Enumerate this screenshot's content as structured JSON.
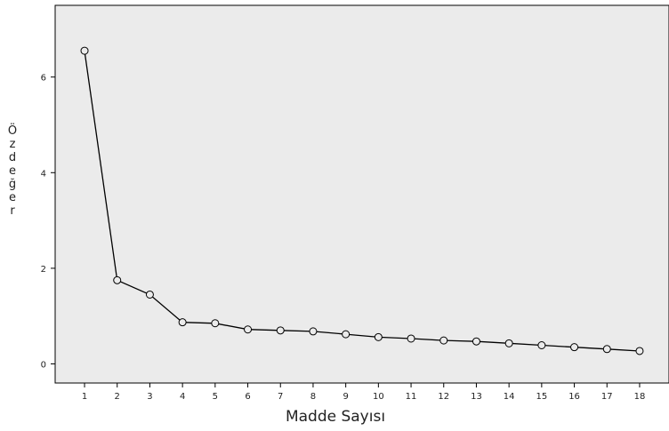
{
  "chart_data": {
    "type": "line",
    "title": "",
    "xlabel": "Madde Sayısı",
    "ylabel": "Özdeğer",
    "x": [
      1,
      2,
      3,
      4,
      5,
      6,
      7,
      8,
      9,
      10,
      11,
      12,
      13,
      14,
      15,
      16,
      17,
      18
    ],
    "x_ticks": [
      "1",
      "2",
      "3",
      "4",
      "5",
      "6",
      "7",
      "8",
      "9",
      "10",
      "11",
      "12",
      "13",
      "14",
      "15",
      "16",
      "17",
      "18"
    ],
    "series": [
      {
        "values": [
          6.55,
          1.75,
          1.45,
          0.87,
          0.85,
          0.72,
          0.7,
          0.68,
          0.62,
          0.56,
          0.53,
          0.49,
          0.47,
          0.43,
          0.39,
          0.35,
          0.31,
          0.27
        ]
      }
    ],
    "y_ticks": [
      0,
      2,
      4,
      6
    ],
    "xlim": [
      0.1,
      18.9
    ],
    "ylim": [
      -0.4,
      7.5
    ],
    "grid": false,
    "legend": "none",
    "marker": "open-circle",
    "colors": {
      "plot_background": "#ebebeb",
      "line": "#000000",
      "marker_edge": "#000000",
      "marker_fill": "#ebebeb",
      "axis": "#000000"
    }
  }
}
